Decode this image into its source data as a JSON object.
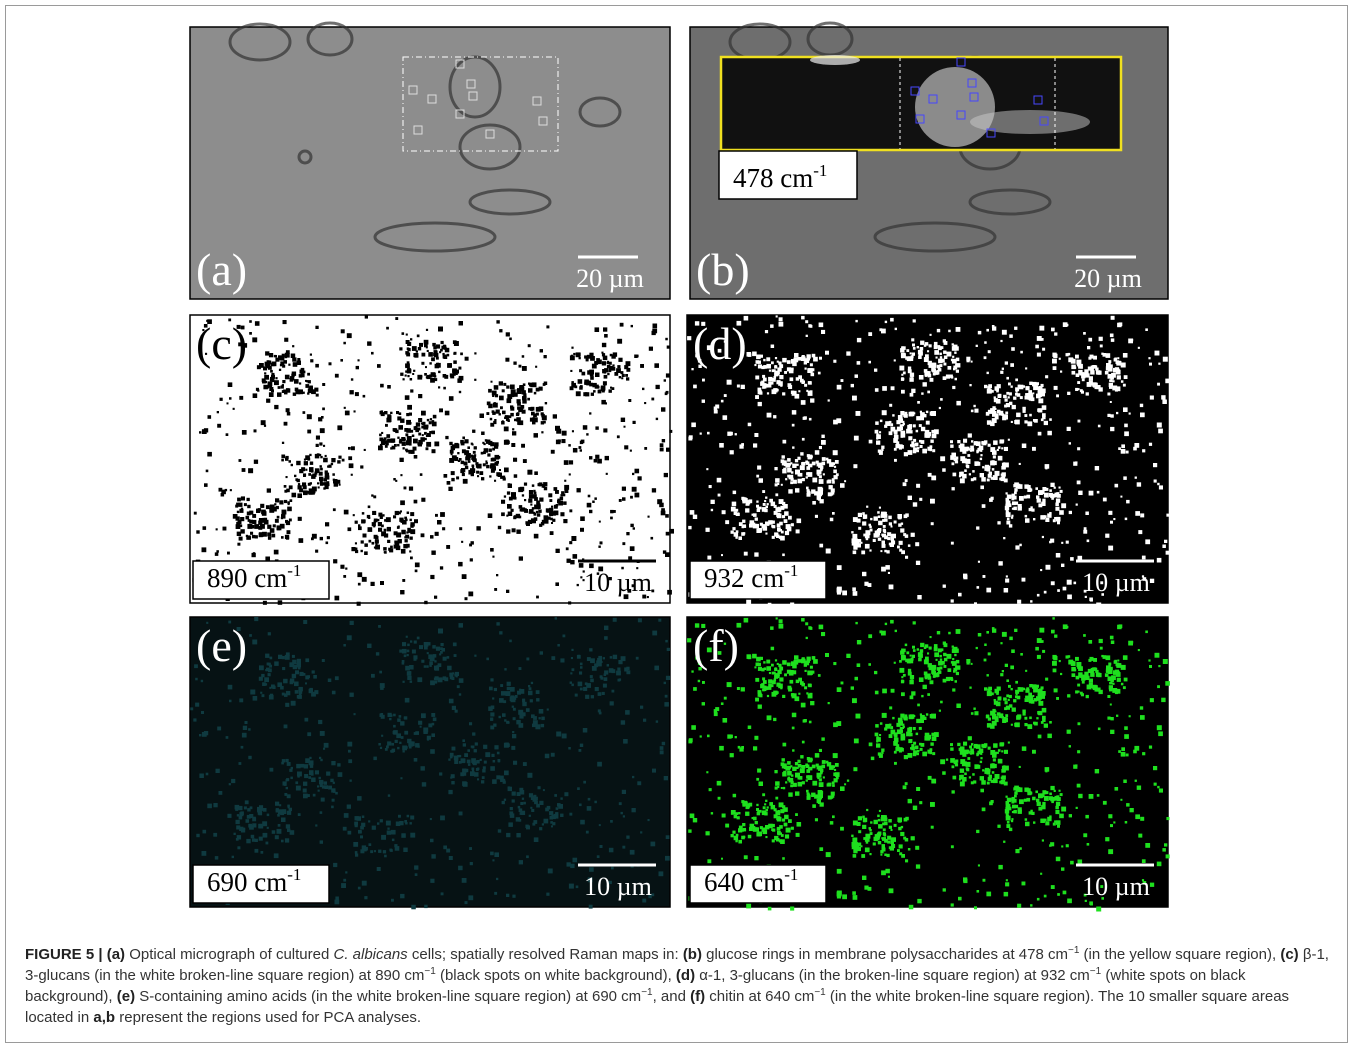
{
  "figure": {
    "panels": [
      {
        "label": "(a)",
        "scale": "20 µm"
      },
      {
        "label": "(b)",
        "wavenumber": "478 cm",
        "superscript": "-1",
        "scale": "20 µm"
      },
      {
        "label": "(c)",
        "wavenumber": "890 cm",
        "superscript": "-1",
        "scale": "10 µm"
      },
      {
        "label": "(d)",
        "wavenumber": "932 cm",
        "superscript": "-1",
        "scale": "10 µm"
      },
      {
        "label": "(e)",
        "wavenumber": "690 cm",
        "superscript": "-1",
        "scale": "10 µm"
      },
      {
        "label": "(f)",
        "wavenumber": "640 cm",
        "superscript": "-1",
        "scale": "10 µm"
      }
    ],
    "caption": [
      "FIGURE 5 | (a)",
      " Optical micrograph of cultured ",
      "C. albicans",
      " cells; spatially resolved Raman maps in: ",
      "(b)",
      " glucose rings in membrane polysaccharides at 478 cm",
      "−1",
      " (in the yellow square region), ",
      "(c)",
      " β-1, 3-glucans (in the white broken-line square region) at 890 cm",
      "−1",
      " (black spots on white background), ",
      "(d)",
      " α-1, 3-glucans (in the broken-line square region) at 932 cm",
      "−1",
      " (white spots on black background), ",
      "(e)",
      " S-containing amino acids (in the white broken-line square region) at 690 cm",
      "−1",
      ", and ",
      "(f)",
      " chitin at 640 cm",
      "−1",
      " (in the white broken-line square region). The 10 smaller square areas located in ",
      "a,b",
      " represent the regions used for PCA analyses."
    ]
  }
}
